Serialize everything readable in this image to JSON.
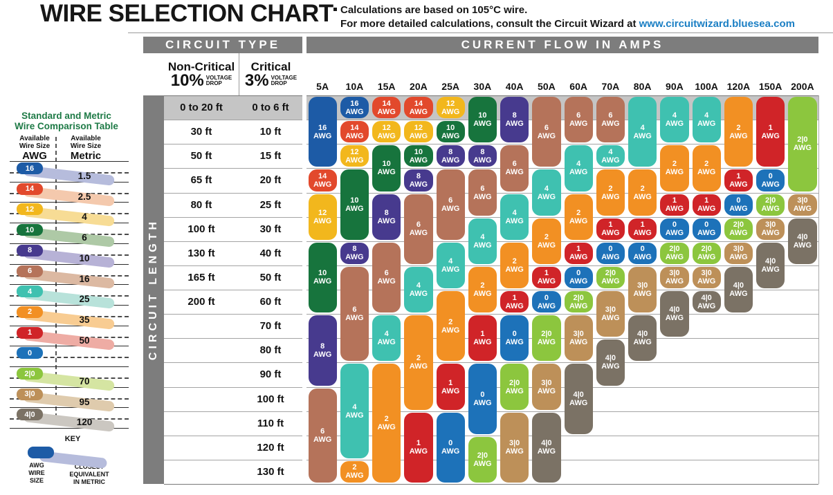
{
  "header": {
    "title": "WIRE SELECTION CHART",
    "note_line1": "Calculations are based on 105°C wire.",
    "note_line2_prefix": "For more detailed calculations, consult the Circuit Wizard at ",
    "link_text": "www.circuitwizard.bluesea.com",
    "link_color": "#1b7fc4"
  },
  "sidebar": {
    "title_line1": "Standard and Metric",
    "title_line2": "Wire Comparison Table",
    "title_color": "#1e7a46",
    "left_header": [
      "Available",
      "Wire Size",
      "AWG"
    ],
    "right_header": [
      "Available",
      "Wire Size",
      "Metric"
    ],
    "rows": [
      {
        "awg": "16",
        "metric": "1.5"
      },
      {
        "awg": "14",
        "metric": "2.5"
      },
      {
        "awg": "12",
        "metric": "4"
      },
      {
        "awg": "10",
        "metric": "6"
      },
      {
        "awg": "8",
        "metric": "10"
      },
      {
        "awg": "6",
        "metric": "16"
      },
      {
        "awg": "4",
        "metric": "25"
      },
      {
        "awg": "2",
        "metric": "35"
      },
      {
        "awg": "1",
        "metric": "50"
      },
      {
        "awg": "0",
        "metric": ""
      },
      {
        "awg": "2|0",
        "metric": "70"
      },
      {
        "awg": "3|0",
        "metric": "95"
      },
      {
        "awg": "4|0",
        "metric": "120"
      }
    ],
    "key": {
      "title": "KEY",
      "pill_label": [
        "AWG",
        "WIRE",
        "SIZE"
      ],
      "band_label": [
        "CLOSEST",
        "EQUIVALENT",
        "IN METRIC"
      ]
    }
  },
  "table": {
    "circuit_type_header": "CIRCUIT TYPE",
    "current_flow_header": "CURRENT FLOW IN AMPS",
    "non_critical": {
      "title": "Non-Critical",
      "pct": "10%"
    },
    "critical": {
      "title": "Critical",
      "pct": "3%"
    },
    "voltage_word": "VOLTAGE",
    "drop_word": "DROP",
    "circuit_length_label": "CIRCUIT LENGTH",
    "header_gray": "#7d7d7d",
    "first_row_gray": "#c5c5c5"
  },
  "chart_data": {
    "type": "table",
    "title": "WIRE SELECTION CHART",
    "pill_suffix": "AWG",
    "amp_columns": [
      "5A",
      "10A",
      "15A",
      "20A",
      "25A",
      "30A",
      "40A",
      "50A",
      "60A",
      "70A",
      "80A",
      "90A",
      "100A",
      "120A",
      "150A",
      "200A"
    ],
    "length_rows": [
      {
        "non_critical": "0 to 20 ft",
        "critical": "0 to 6 ft"
      },
      {
        "non_critical": "30 ft",
        "critical": "10 ft"
      },
      {
        "non_critical": "50 ft",
        "critical": "15 ft"
      },
      {
        "non_critical": "65 ft",
        "critical": "20 ft"
      },
      {
        "non_critical": "80 ft",
        "critical": "25 ft"
      },
      {
        "non_critical": "100 ft",
        "critical": "30 ft"
      },
      {
        "non_critical": "130 ft",
        "critical": "40 ft"
      },
      {
        "non_critical": "165 ft",
        "critical": "50 ft"
      },
      {
        "non_critical": "200 ft",
        "critical": "60 ft"
      },
      {
        "non_critical": "",
        "critical": "70 ft"
      },
      {
        "non_critical": "",
        "critical": "80 ft"
      },
      {
        "non_critical": "",
        "critical": "90 ft"
      },
      {
        "non_critical": "",
        "critical": "100 ft"
      },
      {
        "non_critical": "",
        "critical": "110 ft"
      },
      {
        "non_critical": "",
        "critical": "120 ft"
      },
      {
        "non_critical": "",
        "critical": "130 ft"
      }
    ],
    "gauge_colors": {
      "16": {
        "color": "#1d5ba6",
        "tint": "#b6bcdc"
      },
      "14": {
        "color": "#e2492c",
        "tint": "#f4c9ad"
      },
      "12": {
        "color": "#f2b71d",
        "tint": "#f7dc95"
      },
      "10": {
        "color": "#17743d",
        "tint": "#aec9a6"
      },
      "8": {
        "color": "#473a8e",
        "tint": "#b7b2d6"
      },
      "6": {
        "color": "#b5735a",
        "tint": "#dcb9a2"
      },
      "4": {
        "color": "#3fc1b0",
        "tint": "#b8e2da"
      },
      "2": {
        "color": "#f29023",
        "tint": "#f8cc92"
      },
      "1": {
        "color": "#d02428",
        "tint": "#eeaca4"
      },
      "0": {
        "color": "#1d72b9",
        "tint": "#abc8e4"
      },
      "2|0": {
        "color": "#8cc63e",
        "tint": "#d5e5a2"
      },
      "3|0": {
        "color": "#bd9059",
        "tint": "#dfcbad"
      },
      "4|0": {
        "color": "#7b7265",
        "tint": "#cbc7c1"
      }
    },
    "columns": [
      {
        "amp": "5A",
        "segments": [
          {
            "g": "16",
            "r": [
              1,
              3
            ]
          },
          {
            "g": "14",
            "r": [
              4,
              4
            ]
          },
          {
            "g": "12",
            "r": [
              5,
              6
            ]
          },
          {
            "g": "10",
            "r": [
              7,
              9
            ]
          },
          {
            "g": "8",
            "r": [
              10,
              12
            ]
          },
          {
            "g": "6",
            "r": [
              13,
              16
            ]
          }
        ]
      },
      {
        "amp": "10A",
        "segments": [
          {
            "g": "16",
            "r": [
              1,
              1
            ]
          },
          {
            "g": "14",
            "r": [
              2,
              2
            ]
          },
          {
            "g": "12",
            "r": [
              3,
              3
            ]
          },
          {
            "g": "10",
            "r": [
              4,
              6
            ]
          },
          {
            "g": "8",
            "r": [
              7,
              7
            ]
          },
          {
            "g": "6",
            "r": [
              8,
              11
            ]
          },
          {
            "g": "4",
            "r": [
              12,
              15
            ]
          },
          {
            "g": "2",
            "r": [
              16,
              16
            ]
          }
        ]
      },
      {
        "amp": "15A",
        "segments": [
          {
            "g": "14",
            "r": [
              1,
              1
            ]
          },
          {
            "g": "12",
            "r": [
              2,
              2
            ]
          },
          {
            "g": "10",
            "r": [
              3,
              4
            ]
          },
          {
            "g": "8",
            "r": [
              5,
              6
            ]
          },
          {
            "g": "6",
            "r": [
              7,
              9
            ]
          },
          {
            "g": "4",
            "r": [
              10,
              11
            ]
          },
          {
            "g": "2",
            "r": [
              12,
              16
            ]
          }
        ]
      },
      {
        "amp": "20A",
        "segments": [
          {
            "g": "14",
            "r": [
              1,
              1
            ]
          },
          {
            "g": "12",
            "r": [
              2,
              2
            ]
          },
          {
            "g": "10",
            "r": [
              3,
              3
            ]
          },
          {
            "g": "8",
            "r": [
              4,
              4
            ]
          },
          {
            "g": "6",
            "r": [
              5,
              7
            ]
          },
          {
            "g": "4",
            "r": [
              8,
              9
            ]
          },
          {
            "g": "2",
            "r": [
              10,
              13
            ]
          },
          {
            "g": "1",
            "r": [
              14,
              16
            ]
          }
        ]
      },
      {
        "amp": "25A",
        "segments": [
          {
            "g": "12",
            "r": [
              1,
              1
            ]
          },
          {
            "g": "10",
            "r": [
              2,
              2
            ]
          },
          {
            "g": "8",
            "r": [
              3,
              3
            ]
          },
          {
            "g": "6",
            "r": [
              4,
              6
            ]
          },
          {
            "g": "4",
            "r": [
              7,
              8
            ]
          },
          {
            "g": "2",
            "r": [
              9,
              11
            ]
          },
          {
            "g": "1",
            "r": [
              12,
              13
            ]
          },
          {
            "g": "0",
            "r": [
              14,
              16
            ]
          }
        ]
      },
      {
        "amp": "30A",
        "segments": [
          {
            "g": "10",
            "r": [
              1,
              2
            ]
          },
          {
            "g": "8",
            "r": [
              3,
              3
            ]
          },
          {
            "g": "6",
            "r": [
              4,
              5
            ]
          },
          {
            "g": "4",
            "r": [
              6,
              7
            ]
          },
          {
            "g": "2",
            "r": [
              8,
              9
            ]
          },
          {
            "g": "1",
            "r": [
              10,
              11
            ]
          },
          {
            "g": "0",
            "r": [
              12,
              14
            ]
          },
          {
            "g": "2|0",
            "r": [
              15,
              16
            ]
          }
        ]
      },
      {
        "amp": "40A",
        "segments": [
          {
            "g": "8",
            "r": [
              1,
              2
            ]
          },
          {
            "g": "6",
            "r": [
              3,
              4
            ]
          },
          {
            "g": "4",
            "r": [
              5,
              6
            ]
          },
          {
            "g": "2",
            "r": [
              7,
              8
            ]
          },
          {
            "g": "1",
            "r": [
              9,
              9
            ]
          },
          {
            "g": "0",
            "r": [
              10,
              11
            ]
          },
          {
            "g": "2|0",
            "r": [
              12,
              13
            ]
          },
          {
            "g": "3|0",
            "r": [
              14,
              16
            ]
          }
        ]
      },
      {
        "amp": "50A",
        "segments": [
          {
            "g": "6",
            "r": [
              1,
              3
            ]
          },
          {
            "g": "4",
            "r": [
              4,
              5
            ]
          },
          {
            "g": "2",
            "r": [
              6,
              7
            ]
          },
          {
            "g": "1",
            "r": [
              8,
              8
            ]
          },
          {
            "g": "0",
            "r": [
              9,
              9
            ]
          },
          {
            "g": "2|0",
            "r": [
              10,
              11
            ]
          },
          {
            "g": "3|0",
            "r": [
              12,
              13
            ]
          },
          {
            "g": "4|0",
            "r": [
              14,
              16
            ]
          }
        ]
      },
      {
        "amp": "60A",
        "segments": [
          {
            "g": "6",
            "r": [
              1,
              2
            ]
          },
          {
            "g": "4",
            "r": [
              3,
              4
            ]
          },
          {
            "g": "2",
            "r": [
              5,
              6
            ]
          },
          {
            "g": "1",
            "r": [
              7,
              7
            ]
          },
          {
            "g": "0",
            "r": [
              8,
              8
            ]
          },
          {
            "g": "2|0",
            "r": [
              9,
              9
            ]
          },
          {
            "g": "3|0",
            "r": [
              10,
              11
            ]
          },
          {
            "g": "4|0",
            "r": [
              12,
              14
            ]
          }
        ]
      },
      {
        "amp": "70A",
        "segments": [
          {
            "g": "6",
            "r": [
              1,
              2
            ]
          },
          {
            "g": "4",
            "r": [
              3,
              3
            ]
          },
          {
            "g": "2",
            "r": [
              4,
              5
            ]
          },
          {
            "g": "1",
            "r": [
              6,
              6
            ]
          },
          {
            "g": "0",
            "r": [
              7,
              7
            ]
          },
          {
            "g": "2|0",
            "r": [
              8,
              8
            ]
          },
          {
            "g": "3|0",
            "r": [
              9,
              10
            ]
          },
          {
            "g": "4|0",
            "r": [
              11,
              12
            ]
          }
        ]
      },
      {
        "amp": "80A",
        "segments": [
          {
            "g": "4",
            "r": [
              1,
              3
            ]
          },
          {
            "g": "2",
            "r": [
              4,
              5
            ]
          },
          {
            "g": "1",
            "r": [
              6,
              6
            ]
          },
          {
            "g": "0",
            "r": [
              7,
              7
            ]
          },
          {
            "g": "3|0",
            "r": [
              8,
              9
            ]
          },
          {
            "g": "4|0",
            "r": [
              10,
              11
            ]
          }
        ]
      },
      {
        "amp": "90A",
        "segments": [
          {
            "g": "4",
            "r": [
              1,
              2
            ]
          },
          {
            "g": "2",
            "r": [
              3,
              4
            ]
          },
          {
            "g": "1",
            "r": [
              5,
              5
            ]
          },
          {
            "g": "0",
            "r": [
              6,
              6
            ]
          },
          {
            "g": "2|0",
            "r": [
              7,
              7
            ]
          },
          {
            "g": "3|0",
            "r": [
              8,
              8
            ]
          },
          {
            "g": "4|0",
            "r": [
              9,
              10
            ]
          }
        ]
      },
      {
        "amp": "100A",
        "segments": [
          {
            "g": "4",
            "r": [
              1,
              2
            ]
          },
          {
            "g": "2",
            "r": [
              3,
              4
            ]
          },
          {
            "g": "1",
            "r": [
              5,
              5
            ]
          },
          {
            "g": "0",
            "r": [
              6,
              6
            ]
          },
          {
            "g": "2|0",
            "r": [
              7,
              7
            ]
          },
          {
            "g": "3|0",
            "r": [
              8,
              8
            ]
          },
          {
            "g": "4|0",
            "r": [
              9,
              9
            ]
          }
        ]
      },
      {
        "amp": "120A",
        "segments": [
          {
            "g": "2",
            "r": [
              1,
              3
            ]
          },
          {
            "g": "1",
            "r": [
              4,
              4
            ]
          },
          {
            "g": "0",
            "r": [
              5,
              5
            ]
          },
          {
            "g": "2|0",
            "r": [
              6,
              6
            ]
          },
          {
            "g": "3|0",
            "r": [
              7,
              7
            ]
          },
          {
            "g": "4|0",
            "r": [
              8,
              9
            ]
          }
        ]
      },
      {
        "amp": "150A",
        "segments": [
          {
            "g": "1",
            "r": [
              1,
              3
            ]
          },
          {
            "g": "0",
            "r": [
              4,
              4
            ]
          },
          {
            "g": "2|0",
            "r": [
              5,
              5
            ]
          },
          {
            "g": "3|0",
            "r": [
              6,
              6
            ]
          },
          {
            "g": "4|0",
            "r": [
              7,
              8
            ]
          }
        ]
      },
      {
        "amp": "200A",
        "segments": [
          {
            "g": "2|0",
            "r": [
              1,
              4
            ]
          },
          {
            "g": "3|0",
            "r": [
              5,
              5
            ]
          },
          {
            "g": "4|0",
            "r": [
              6,
              7
            ]
          }
        ]
      }
    ]
  }
}
